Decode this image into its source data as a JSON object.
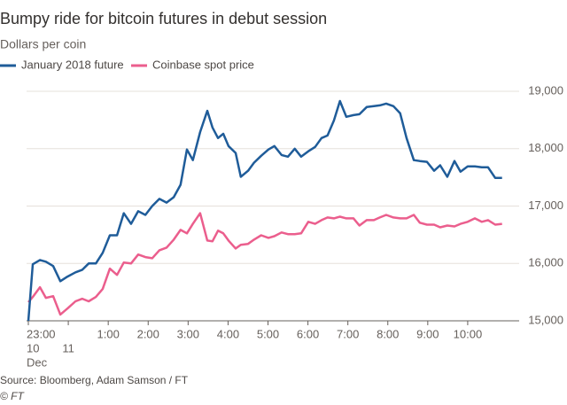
{
  "chart_data": {
    "type": "line",
    "title": "Bumpy ride for bitcoin futures in debut session",
    "subtitle": "Dollars per coin",
    "source": "Source: Bloomberg, Adam Samson / FT",
    "credit": "© FT",
    "x": [
      -1.0,
      -0.89,
      -0.71,
      -0.56,
      -0.38,
      -0.2,
      -0.02,
      0.18,
      0.35,
      0.51,
      0.69,
      0.86,
      1.04,
      1.22,
      1.39,
      1.57,
      1.75,
      1.93,
      2.1,
      2.28,
      2.46,
      2.64,
      2.81,
      2.97,
      3.12,
      3.3,
      3.48,
      3.61,
      3.75,
      3.88,
      4.01,
      4.19,
      4.32,
      4.5,
      4.65,
      4.83,
      5.01,
      5.16,
      5.34,
      5.5,
      5.67,
      5.83,
      6.01,
      6.18,
      6.34,
      6.49,
      6.65,
      6.8,
      6.96,
      7.14,
      7.29,
      7.47,
      7.65,
      7.8,
      7.96,
      8.14,
      8.31,
      8.47,
      8.65,
      8.8,
      8.98,
      9.16,
      9.31,
      9.49,
      9.67,
      9.82,
      10.0,
      10.18,
      10.35,
      10.51,
      10.69,
      10.86
    ],
    "series": [
      {
        "name": "January 2018 future",
        "color": "#1f5c99",
        "values": [
          15000,
          15985,
          16060,
          16030,
          15955,
          15690,
          15770,
          15845,
          15890,
          16000,
          16000,
          16185,
          16490,
          16490,
          16875,
          16690,
          16910,
          16845,
          17000,
          17125,
          17060,
          17155,
          17370,
          17985,
          17800,
          18290,
          18660,
          18370,
          18185,
          18260,
          18045,
          17925,
          17510,
          17615,
          17755,
          17875,
          17985,
          18045,
          17890,
          17860,
          18000,
          17860,
          17955,
          18030,
          18185,
          18230,
          18490,
          18830,
          18555,
          18585,
          18600,
          18725,
          18740,
          18755,
          18785,
          18740,
          18615,
          18185,
          17800,
          17785,
          17770,
          17615,
          17710,
          17510,
          17785,
          17600,
          17690,
          17690,
          17675,
          17675,
          17490,
          17490
        ]
      },
      {
        "name": "Coinbase spot price",
        "color": "#eb5e8d",
        "values": [
          15325,
          15415,
          15585,
          15400,
          15430,
          15110,
          15215,
          15340,
          15385,
          15340,
          15415,
          15555,
          15910,
          15800,
          16015,
          16000,
          16155,
          16110,
          16090,
          16230,
          16275,
          16415,
          16585,
          16525,
          16690,
          16875,
          16400,
          16385,
          16570,
          16525,
          16400,
          16260,
          16325,
          16340,
          16415,
          16490,
          16445,
          16475,
          16540,
          16510,
          16510,
          16525,
          16725,
          16690,
          16755,
          16800,
          16785,
          16815,
          16785,
          16785,
          16660,
          16755,
          16755,
          16800,
          16845,
          16800,
          16785,
          16785,
          16845,
          16710,
          16675,
          16675,
          16630,
          16660,
          16645,
          16690,
          16725,
          16785,
          16725,
          16755,
          16675,
          16690
        ]
      }
    ],
    "xlim": [
      -1,
      11
    ],
    "xticks": [
      {
        "value": -1,
        "label": "23:00"
      },
      {
        "value": 1,
        "label": "1:00"
      },
      {
        "value": 2,
        "label": "2:00"
      },
      {
        "value": 3,
        "label": "3:00"
      },
      {
        "value": 4,
        "label": "4:00"
      },
      {
        "value": 5,
        "label": "5:00"
      },
      {
        "value": 6,
        "label": "6:00"
      },
      {
        "value": 7,
        "label": "7:00"
      },
      {
        "value": 8,
        "label": "8:00"
      },
      {
        "value": 9,
        "label": "9:00"
      },
      {
        "value": 10,
        "label": "10:00"
      }
    ],
    "date_labels": [
      {
        "value": -1,
        "label": "10"
      },
      {
        "value": 0,
        "label": "11"
      }
    ],
    "month_label": "Dec",
    "ylim": [
      15000,
      19000
    ],
    "yticks": [
      {
        "value": 15000,
        "label": "15,000"
      },
      {
        "value": 16000,
        "label": "16,000"
      },
      {
        "value": 17000,
        "label": "17,000"
      },
      {
        "value": 18000,
        "label": "18,000"
      },
      {
        "value": 19000,
        "label": "19,000"
      }
    ],
    "grid": true
  }
}
